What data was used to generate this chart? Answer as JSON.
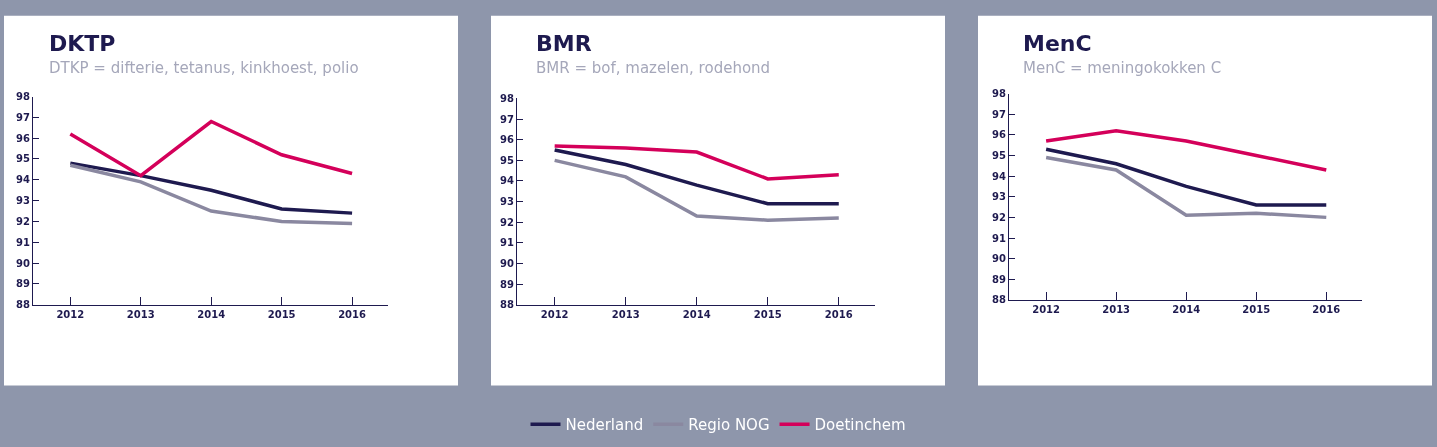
{
  "chart_data": [
    {
      "type": "line",
      "title": "DKTP",
      "subtitle": "DTKP = difterie, tetanus, kinkhoest, polio",
      "categories": [
        "2012",
        "2013",
        "2014",
        "2015",
        "2016"
      ],
      "ylim": [
        88,
        98
      ],
      "yticks": [
        88,
        89,
        90,
        91,
        92,
        93,
        94,
        95,
        96,
        97,
        98
      ],
      "legend": "bottom",
      "marker": "none",
      "line_style": "solid",
      "series": [
        {
          "name": "Nederland",
          "color": "#1e1a4f",
          "values": [
            94.8,
            94.2,
            93.5,
            92.6,
            92.4
          ]
        },
        {
          "name": "Regio NOG",
          "color": "#8a88a0",
          "values": [
            94.7,
            93.9,
            92.5,
            92.0,
            91.9
          ]
        },
        {
          "name": "Doetinchem",
          "color": "#d4005a",
          "values": [
            96.2,
            94.2,
            96.8,
            95.2,
            94.3
          ]
        }
      ]
    },
    {
      "type": "line",
      "title": "BMR",
      "subtitle": "BMR = bof, mazelen, rodehond",
      "categories": [
        "2012",
        "2013",
        "2014",
        "2015",
        "2016"
      ],
      "ylim": [
        88,
        98
      ],
      "yticks": [
        88,
        89,
        90,
        91,
        92,
        93,
        94,
        95,
        96,
        97,
        98
      ],
      "marker": "none",
      "line_style": "solid",
      "series": [
        {
          "color": "#1e1a4f",
          "values": [
            95.5,
            94.8,
            93.8,
            92.9,
            92.9
          ]
        },
        {
          "color": "#8a88a0",
          "values": [
            95.0,
            94.2,
            92.3,
            92.1,
            92.2
          ]
        },
        {
          "color": "#d4005a",
          "values": [
            95.7,
            95.6,
            95.4,
            94.1,
            94.3
          ]
        }
      ]
    },
    {
      "type": "line",
      "title": "MenC",
      "subtitle": "MenC = meningokokken C",
      "categories": [
        "2012",
        "2013",
        "2014",
        "2015",
        "2016"
      ],
      "ylim": [
        88,
        98
      ],
      "yticks": [
        88,
        89,
        90,
        91,
        92,
        93,
        94,
        95,
        96,
        97,
        98
      ],
      "marker": "none",
      "line_style": "solid",
      "series": [
        {
          "color": "#1e1a4f",
          "values": [
            95.3,
            94.6,
            93.5,
            92.6,
            92.6
          ]
        },
        {
          "color": "#8a88a0",
          "values": [
            94.9,
            94.3,
            92.1,
            92.2,
            92.0
          ]
        },
        {
          "color": "#d4005a",
          "values": [
            95.7,
            96.2,
            95.7,
            95.0,
            94.3
          ]
        }
      ]
    }
  ]
}
